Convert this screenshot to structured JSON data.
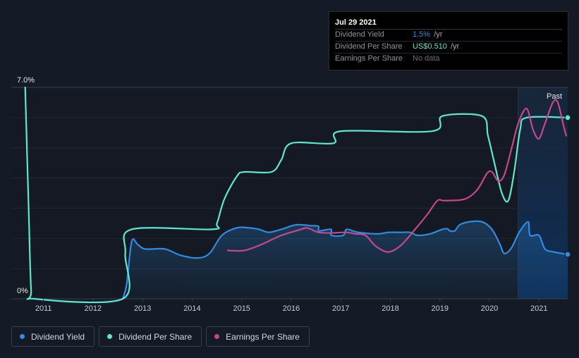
{
  "tooltip": {
    "date": "Jul 29 2021",
    "rows": [
      {
        "label": "Dividend Yield",
        "value": "1.5%",
        "unit": " /yr",
        "color": "#2e8de0"
      },
      {
        "label": "Dividend Per Share",
        "value": "US$0.510",
        "unit": " /yr",
        "color": "#5ce8cf"
      },
      {
        "label": "Earnings Per Share",
        "value": "No data",
        "unit": "",
        "color": "#6b7078"
      }
    ]
  },
  "legend": [
    {
      "label": "Dividend Yield",
      "color": "#2e8de0"
    },
    {
      "label": "Dividend Per Share",
      "color": "#5ce8cf"
    },
    {
      "label": "Earnings Per Share",
      "color": "#c8468e"
    }
  ],
  "chart_data": {
    "type": "line",
    "y_axis_labels": [
      "7.0%",
      "0%"
    ],
    "ylim": [
      0,
      7.0
    ],
    "xlim": [
      2010.35,
      2021.58
    ],
    "x_ticks": [
      "2011",
      "2012",
      "2013",
      "2014",
      "2015",
      "2016",
      "2017",
      "2018",
      "2019",
      "2020",
      "2021"
    ],
    "past_label": "Past",
    "past_region_start": 2020.58,
    "grid": true,
    "series": [
      {
        "name": "Dividend Yield",
        "color": "#2e8de0",
        "area": true,
        "points": [
          [
            2012.6,
            0.0
          ],
          [
            2012.68,
            0.5
          ],
          [
            2012.78,
            1.9
          ],
          [
            2012.9,
            1.8
          ],
          [
            2013.05,
            1.65
          ],
          [
            2013.45,
            1.65
          ],
          [
            2013.75,
            1.45
          ],
          [
            2014.1,
            1.35
          ],
          [
            2014.35,
            1.5
          ],
          [
            2014.6,
            2.1
          ],
          [
            2014.9,
            2.35
          ],
          [
            2015.15,
            2.35
          ],
          [
            2015.35,
            2.3
          ],
          [
            2015.55,
            2.2
          ],
          [
            2015.8,
            2.3
          ],
          [
            2016.1,
            2.45
          ],
          [
            2016.4,
            2.42
          ],
          [
            2016.55,
            2.4
          ],
          [
            2016.56,
            2.25
          ],
          [
            2016.8,
            2.3
          ],
          [
            2016.81,
            2.1
          ],
          [
            2017.05,
            2.1
          ],
          [
            2017.12,
            2.3
          ],
          [
            2017.35,
            2.2
          ],
          [
            2017.75,
            2.15
          ],
          [
            2017.95,
            2.2
          ],
          [
            2018.2,
            2.2
          ],
          [
            2018.4,
            2.2
          ],
          [
            2018.55,
            2.1
          ],
          [
            2018.8,
            2.15
          ],
          [
            2019.05,
            2.3
          ],
          [
            2019.15,
            2.32
          ],
          [
            2019.2,
            2.25
          ],
          [
            2019.3,
            2.25
          ],
          [
            2019.4,
            2.45
          ],
          [
            2019.6,
            2.55
          ],
          [
            2019.85,
            2.55
          ],
          [
            2020.05,
            2.3
          ],
          [
            2020.2,
            1.85
          ],
          [
            2020.3,
            1.5
          ],
          [
            2020.45,
            1.7
          ],
          [
            2020.6,
            2.2
          ],
          [
            2020.78,
            2.55
          ],
          [
            2020.82,
            2.1
          ],
          [
            2021.0,
            2.1
          ],
          [
            2021.12,
            1.65
          ],
          [
            2021.3,
            1.55
          ],
          [
            2021.58,
            1.47
          ]
        ]
      },
      {
        "name": "Dividend Per Share",
        "color": "#5ce8cf",
        "area": false,
        "points": [
          [
            2010.63,
            7.0
          ],
          [
            2010.7,
            3.0
          ],
          [
            2010.75,
            0.3
          ],
          [
            2010.82,
            0.0
          ],
          [
            2012.6,
            0.0
          ],
          [
            2012.65,
            1.5
          ],
          [
            2012.78,
            2.3
          ],
          [
            2014.4,
            2.3
          ],
          [
            2014.5,
            2.5
          ],
          [
            2014.65,
            3.3
          ],
          [
            2014.9,
            4.05
          ],
          [
            2015.05,
            4.2
          ],
          [
            2015.6,
            4.2
          ],
          [
            2015.8,
            4.6
          ],
          [
            2016.0,
            5.15
          ],
          [
            2016.85,
            5.15
          ],
          [
            2017.0,
            5.55
          ],
          [
            2018.85,
            5.55
          ],
          [
            2019.05,
            6.05
          ],
          [
            2019.85,
            6.05
          ],
          [
            2019.97,
            5.4
          ],
          [
            2020.1,
            4.5
          ],
          [
            2020.25,
            3.5
          ],
          [
            2020.38,
            3.25
          ],
          [
            2020.5,
            4.2
          ],
          [
            2020.62,
            5.6
          ],
          [
            2020.75,
            6.0
          ],
          [
            2021.58,
            6.0
          ]
        ]
      },
      {
        "name": "Earnings Per Share",
        "color": "#c8468e",
        "area": false,
        "points": [
          [
            2014.72,
            1.6
          ],
          [
            2015.05,
            1.6
          ],
          [
            2015.4,
            1.8
          ],
          [
            2015.8,
            2.1
          ],
          [
            2016.2,
            2.3
          ],
          [
            2016.3,
            2.35
          ],
          [
            2016.4,
            2.3
          ],
          [
            2016.55,
            2.2
          ],
          [
            2016.8,
            2.18
          ],
          [
            2017.1,
            2.2
          ],
          [
            2017.3,
            2.15
          ],
          [
            2017.5,
            2.1
          ],
          [
            2017.7,
            1.75
          ],
          [
            2017.95,
            1.55
          ],
          [
            2018.2,
            1.75
          ],
          [
            2018.5,
            2.3
          ],
          [
            2018.75,
            2.8
          ],
          [
            2018.95,
            3.25
          ],
          [
            2019.1,
            3.25
          ],
          [
            2019.5,
            3.3
          ],
          [
            2019.75,
            3.6
          ],
          [
            2019.95,
            4.15
          ],
          [
            2020.05,
            4.2
          ],
          [
            2020.18,
            3.9
          ],
          [
            2020.3,
            4.1
          ],
          [
            2020.45,
            5.0
          ],
          [
            2020.58,
            5.8
          ],
          [
            2020.75,
            6.3
          ],
          [
            2020.88,
            5.6
          ],
          [
            2021.0,
            5.3
          ],
          [
            2021.12,
            5.8
          ],
          [
            2021.28,
            6.5
          ],
          [
            2021.38,
            6.5
          ],
          [
            2021.5,
            5.7
          ],
          [
            2021.55,
            5.4
          ]
        ]
      }
    ]
  }
}
